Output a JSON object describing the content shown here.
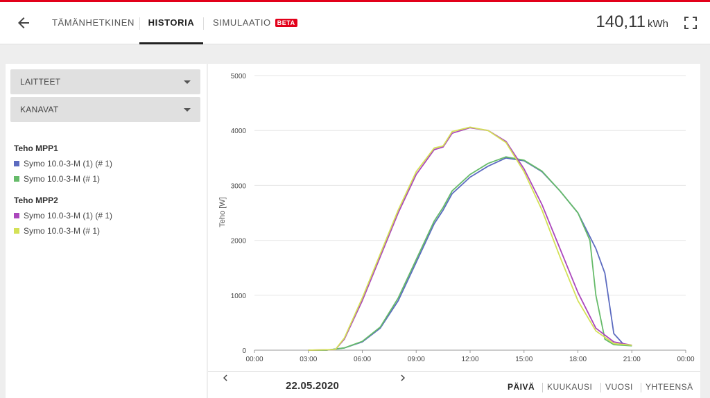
{
  "header": {
    "back_icon": "arrow-left-icon",
    "tabs": [
      {
        "label": "TÄMÄNHETKINEN",
        "active": false
      },
      {
        "label": "HISTORIA",
        "active": true
      },
      {
        "label": "SIMULAATIO",
        "active": false,
        "badge": "BETA"
      }
    ],
    "energy_value": "140,11",
    "energy_unit": "kWh",
    "fullscreen_icon": "fullscreen-icon",
    "accent_color": "#e2001a"
  },
  "filters": {
    "devices_label": "LAITTEET",
    "channels_label": "KANAVAT"
  },
  "legend": {
    "groups": [
      {
        "title": "Teho MPP1",
        "items": [
          {
            "label": "Symo 10.0-3-M (1) (# 1)",
            "color": "#5c6bc0"
          },
          {
            "label": "Symo 10.0-3-M (# 1)",
            "color": "#66bb6a"
          }
        ]
      },
      {
        "title": "Teho MPP2",
        "items": [
          {
            "label": "Symo 10.0-3-M (1) (# 1)",
            "color": "#ab47bc"
          },
          {
            "label": "Symo 10.0-3-M (# 1)",
            "color": "#d4e157"
          }
        ]
      }
    ]
  },
  "navigation": {
    "date": "22.05.2020",
    "prev_icon": "chevron-left-icon",
    "next_icon": "chevron-right-icon",
    "periods": [
      {
        "label": "PÄIVÄ",
        "active": true
      },
      {
        "label": "KUUKAUSI",
        "active": false
      },
      {
        "label": "VUOSI",
        "active": false
      },
      {
        "label": "YHTEENSÄ",
        "active": false
      }
    ]
  },
  "chart_data": {
    "type": "line",
    "ylabel": "Teho [W]",
    "ylim": [
      0,
      5000
    ],
    "yticks": [
      "0",
      "1000",
      "2000",
      "3000",
      "4000",
      "5000"
    ],
    "xlim": [
      "00:00",
      "24:00"
    ],
    "xticks": [
      "00:00",
      "03:00",
      "06:00",
      "09:00",
      "12:00",
      "15:00",
      "18:00",
      "21:00",
      "00:00"
    ],
    "grid": true,
    "series": [
      {
        "name": "Teho MPP1 Symo 10.0-3-M (1) (# 1)",
        "color": "#5c6bc0",
        "points": [
          [
            "03:00",
            0
          ],
          [
            "04:00",
            0
          ],
          [
            "05:00",
            40
          ],
          [
            "06:00",
            150
          ],
          [
            "07:00",
            400
          ],
          [
            "08:00",
            900
          ],
          [
            "09:00",
            1600
          ],
          [
            "10:00",
            2300
          ],
          [
            "10:30",
            2550
          ],
          [
            "11:00",
            2850
          ],
          [
            "12:00",
            3150
          ],
          [
            "13:00",
            3350
          ],
          [
            "14:00",
            3500
          ],
          [
            "15:00",
            3450
          ],
          [
            "16:00",
            3250
          ],
          [
            "17:00",
            2900
          ],
          [
            "18:00",
            2500
          ],
          [
            "19:00",
            1850
          ],
          [
            "19:30",
            1400
          ],
          [
            "20:00",
            300
          ],
          [
            "20:30",
            120
          ],
          [
            "21:00",
            80
          ]
        ]
      },
      {
        "name": "Teho MPP1 Symo 10.0-3-M (# 1)",
        "color": "#66bb6a",
        "points": [
          [
            "03:00",
            0
          ],
          [
            "04:00",
            0
          ],
          [
            "05:00",
            40
          ],
          [
            "06:00",
            160
          ],
          [
            "07:00",
            420
          ],
          [
            "08:00",
            950
          ],
          [
            "09:00",
            1650
          ],
          [
            "10:00",
            2350
          ],
          [
            "10:30",
            2600
          ],
          [
            "11:00",
            2900
          ],
          [
            "12:00",
            3200
          ],
          [
            "13:00",
            3400
          ],
          [
            "14:00",
            3520
          ],
          [
            "15:00",
            3460
          ],
          [
            "16:00",
            3260
          ],
          [
            "17:00",
            2900
          ],
          [
            "18:00",
            2500
          ],
          [
            "18:40",
            2000
          ],
          [
            "19:00",
            1000
          ],
          [
            "19:30",
            200
          ],
          [
            "20:00",
            100
          ],
          [
            "21:00",
            80
          ]
        ]
      },
      {
        "name": "Teho MPP2 Symo 10.0-3-M (1) (# 1)",
        "color": "#ab47bc",
        "points": [
          [
            "03:00",
            0
          ],
          [
            "04:30",
            10
          ],
          [
            "05:00",
            200
          ],
          [
            "06:00",
            900
          ],
          [
            "07:00",
            1700
          ],
          [
            "08:00",
            2500
          ],
          [
            "09:00",
            3200
          ],
          [
            "10:00",
            3650
          ],
          [
            "10:30",
            3700
          ],
          [
            "11:00",
            3950
          ],
          [
            "12:00",
            4050
          ],
          [
            "13:00",
            4000
          ],
          [
            "14:00",
            3800
          ],
          [
            "15:00",
            3300
          ],
          [
            "16:00",
            2650
          ],
          [
            "17:00",
            1850
          ],
          [
            "18:00",
            1050
          ],
          [
            "19:00",
            400
          ],
          [
            "20:00",
            150
          ],
          [
            "21:00",
            90
          ]
        ]
      },
      {
        "name": "Teho MPP2 Symo 10.0-3-M (# 1)",
        "color": "#d4e157",
        "points": [
          [
            "03:00",
            0
          ],
          [
            "04:30",
            10
          ],
          [
            "05:00",
            220
          ],
          [
            "06:00",
            950
          ],
          [
            "07:00",
            1750
          ],
          [
            "08:00",
            2550
          ],
          [
            "09:00",
            3250
          ],
          [
            "10:00",
            3680
          ],
          [
            "10:30",
            3720
          ],
          [
            "11:00",
            3980
          ],
          [
            "12:00",
            4060
          ],
          [
            "13:00",
            4000
          ],
          [
            "14:00",
            3780
          ],
          [
            "15:00",
            3250
          ],
          [
            "16:00",
            2550
          ],
          [
            "17:00",
            1700
          ],
          [
            "18:00",
            900
          ],
          [
            "19:00",
            350
          ],
          [
            "20:00",
            120
          ],
          [
            "21:00",
            90
          ]
        ]
      }
    ]
  }
}
